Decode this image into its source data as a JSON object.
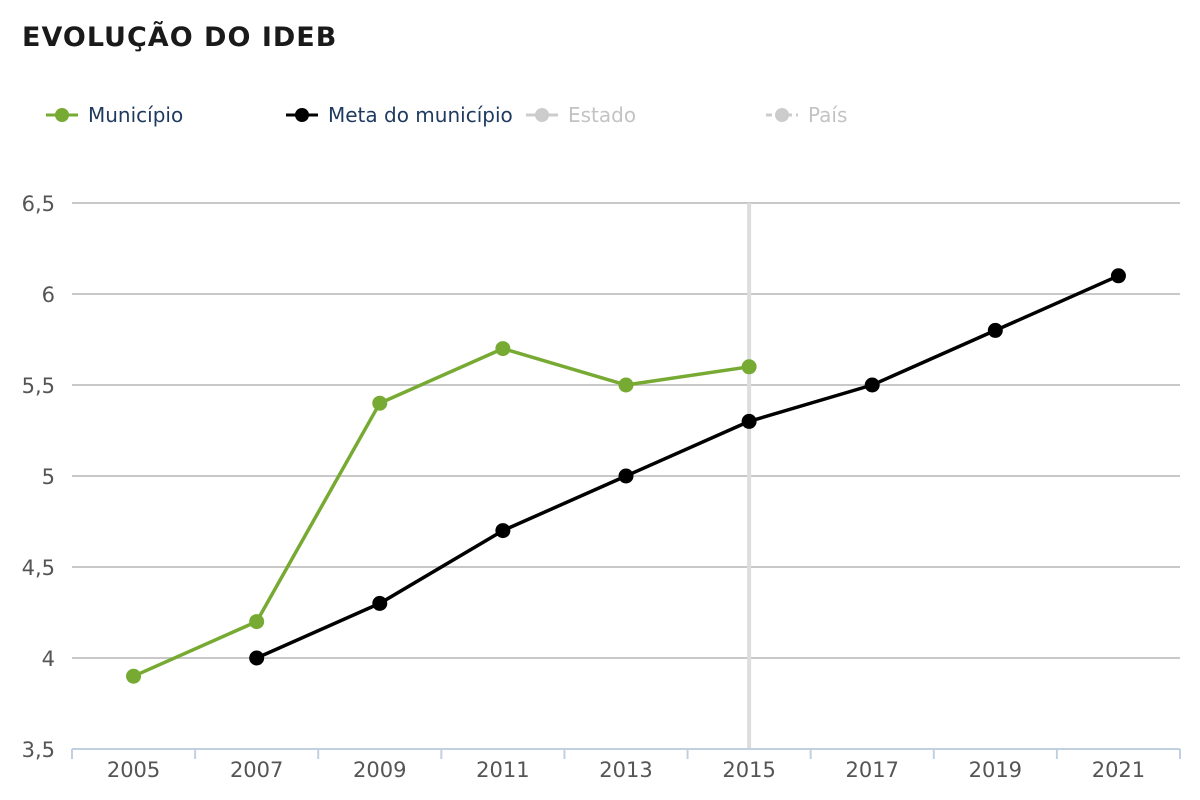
{
  "title": "EVOLUÇÃO DO IDEB",
  "legend": [
    {
      "label": "Município",
      "color": "#77aa33",
      "active": true,
      "dash": false
    },
    {
      "label": "Meta do município",
      "color": "#000000",
      "active": true,
      "dash": false
    },
    {
      "label": "Estado",
      "color": "#cccccc",
      "active": false,
      "dash": false
    },
    {
      "label": "País",
      "color": "#cccccc",
      "active": false,
      "dash": true
    }
  ],
  "colors": {
    "municipio": "#77aa33",
    "meta": "#000000",
    "grid": "#c8c8c8",
    "crosshair": "#dddddd",
    "axis": "#c0d0e0"
  },
  "chart_data": {
    "type": "line",
    "categories": [
      "2005",
      "2007",
      "2009",
      "2011",
      "2013",
      "2015",
      "2017",
      "2019",
      "2021"
    ],
    "series": [
      {
        "name": "Município",
        "color": "#77aa33",
        "values": [
          3.9,
          4.2,
          5.4,
          5.7,
          5.5,
          5.6,
          null,
          null,
          null
        ]
      },
      {
        "name": "Meta do município",
        "color": "#000000",
        "values": [
          null,
          4.0,
          4.3,
          4.7,
          5.0,
          5.3,
          5.5,
          5.8,
          6.1
        ]
      }
    ],
    "yticks": [
      3.5,
      4,
      4.5,
      5,
      5.5,
      6,
      6.5
    ],
    "ytick_labels": [
      "3,5",
      "4",
      "4,5",
      "5",
      "5,5",
      "6",
      "6,5"
    ],
    "ylim": [
      3.5,
      6.5
    ],
    "highlight_category": "2015",
    "grid": true,
    "legend_position": "top-left"
  }
}
